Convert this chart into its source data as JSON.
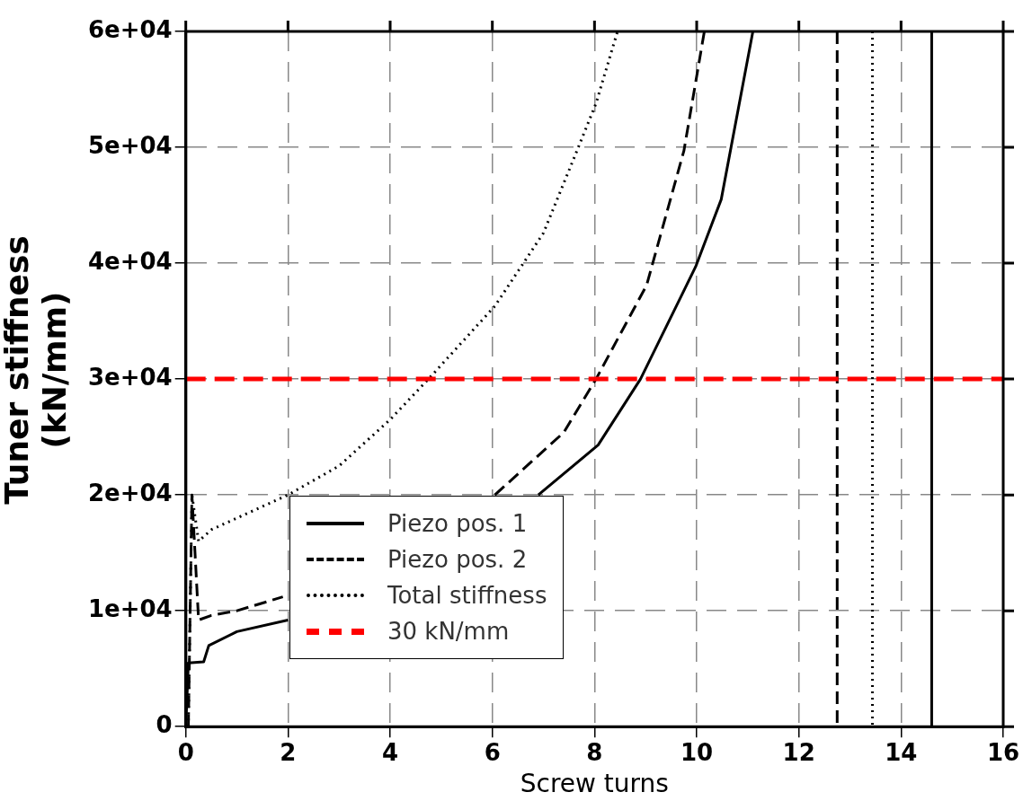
{
  "chart_data": {
    "type": "line",
    "xlabel": "Screw turns",
    "ylabel": "Tuner stiffness (kN/mm)",
    "xlim": [
      0,
      16
    ],
    "xticks": [
      0,
      2,
      4,
      6,
      8,
      10,
      12,
      14,
      16
    ],
    "ylim": [
      0,
      60000
    ],
    "yticks": [
      {
        "value": 0,
        "label": "0"
      },
      {
        "value": 10000,
        "label": "1e+04"
      },
      {
        "value": 20000,
        "label": "2e+04"
      },
      {
        "value": 30000,
        "label": "3e+04"
      },
      {
        "value": 40000,
        "label": "4e+04"
      },
      {
        "value": 50000,
        "label": "5e+04"
      },
      {
        "value": 60000,
        "label": "6e+04"
      }
    ],
    "grid": true,
    "legend": "bottom left",
    "marker": "none",
    "series": [
      {
        "name": "Piezo pos. 1",
        "color": "#000000",
        "line_style": "solid",
        "x": [
          0,
          0,
          0.05,
          0.35,
          0.45,
          1,
          2,
          2.01,
          6.9,
          8.07,
          8.9,
          9.98,
          10.48,
          11.1,
          11.11,
          14.6,
          14.6
        ],
        "values": [
          60000,
          0,
          5500,
          5600,
          7000,
          8200,
          9200,
          null,
          20000,
          24300,
          30000,
          39700,
          45500,
          60000,
          null,
          60000,
          0
        ]
      },
      {
        "name": "Piezo pos. 2",
        "color": "#000000",
        "line_style": "dashed",
        "x": [
          0.05,
          0.12,
          0.25,
          0.5,
          1,
          1.9,
          1.91,
          6.05,
          7.4,
          8.03,
          9.02,
          9.75,
          10.15,
          10.16,
          12.75,
          12.75
        ],
        "values": [
          0,
          20000,
          9200,
          9600,
          10000,
          11200,
          null,
          20000,
          25400,
          30000,
          38100,
          49700,
          60000,
          null,
          60000,
          0
        ]
      },
      {
        "name": "Total stiffness",
        "color": "#000000",
        "line_style": "dotted",
        "x": [
          0.05,
          0.12,
          0.25,
          0.5,
          1,
          2,
          3,
          4,
          4.75,
          6.05,
          7,
          7.5,
          8.03,
          8.45,
          8.46,
          13.44,
          13.44
        ],
        "values": [
          0,
          20000,
          16000,
          17000,
          18000,
          20000,
          22500,
          26500,
          30000,
          36300,
          42600,
          48000,
          53800,
          60000,
          null,
          60000,
          0
        ]
      }
    ],
    "ref_lines": [
      {
        "axis": "y",
        "value": 30000,
        "label": "30 kN/mm",
        "color": "#ff0000",
        "line_style": "dashed"
      }
    ]
  }
}
